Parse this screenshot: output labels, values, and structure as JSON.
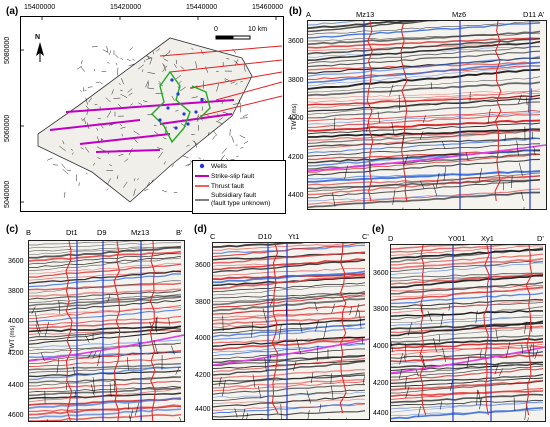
{
  "panels": {
    "a": {
      "label": "(a)",
      "x_ticks": [
        "15400000",
        "15420000",
        "15440000",
        "15460000"
      ],
      "y_ticks": [
        "5080000",
        "5060000",
        "5040000"
      ],
      "north": "N",
      "scale_zero": "0",
      "scale_text": "10 km",
      "legend": [
        {
          "label": "Wells",
          "color": "#1f3ad6"
        },
        {
          "label": "Strike-slip fault",
          "color": "#c000c0"
        },
        {
          "label": "Thrust fault",
          "color": "#e02020"
        },
        {
          "label": "Subsidiary fault\n(fault type unknown)",
          "color": "#000000"
        }
      ]
    },
    "b": {
      "label": "(b)",
      "corner_left": "A",
      "corner_right": "A'",
      "wells": [
        "Mz13",
        "Mz6",
        "D11"
      ],
      "y_ticks": [
        "3600",
        "3800",
        "4000",
        "4200",
        "4400"
      ],
      "y_axis_label": "TWT (ms)"
    },
    "c": {
      "label": "(c)",
      "corner_left": "B",
      "corner_right": "B'",
      "wells": [
        "Dt1",
        "D9",
        "Mz13"
      ],
      "y_ticks": [
        "3600",
        "3800",
        "4000",
        "4200",
        "4400",
        "4600"
      ],
      "y_axis_label": "TWT (ms)"
    },
    "d": {
      "label": "(d)",
      "corner_left": "C",
      "corner_right": "C'",
      "wells": [
        "D10",
        "Yt1"
      ],
      "y_ticks": [
        "3600",
        "3800",
        "4000",
        "4200",
        "4400"
      ]
    },
    "e": {
      "label": "(e)",
      "corner_left": "D",
      "corner_right": "D'",
      "wells": [
        "Y001",
        "Xy1"
      ],
      "y_ticks": [
        "3600",
        "3800",
        "4000",
        "4200",
        "4400"
      ]
    }
  }
}
